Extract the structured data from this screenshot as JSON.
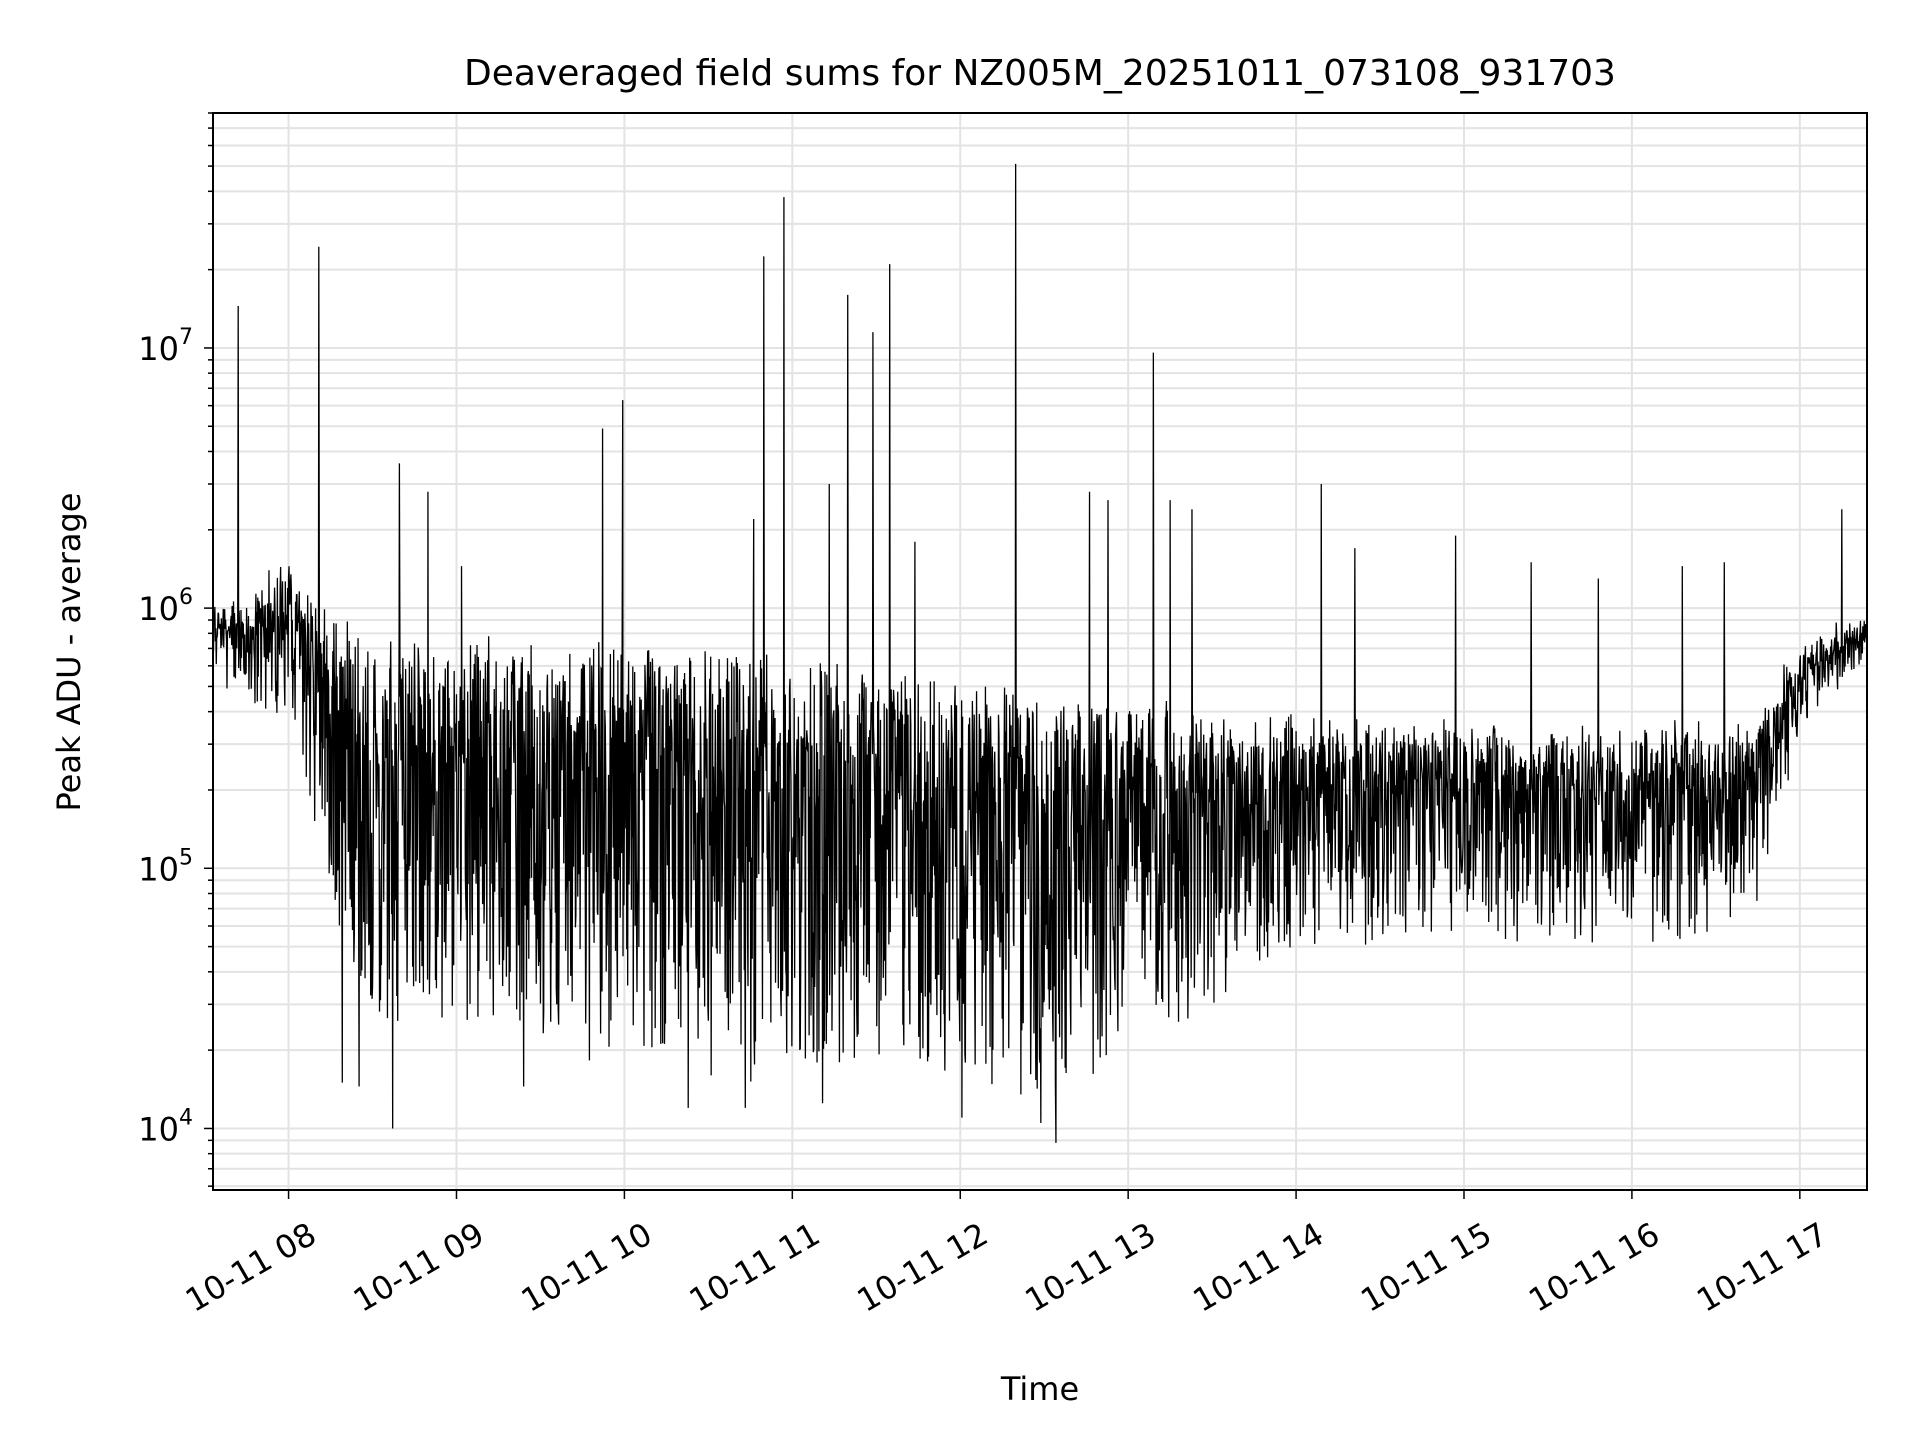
{
  "chart_data": {
    "type": "line",
    "title": "Deaveraged field sums for NZ005M_20251011_073108_931703",
    "xlabel": "Time",
    "ylabel": "Peak ADU - average",
    "yscale": "log",
    "ylim": [
      5800,
      80000000
    ],
    "xlim_hours": [
      7.55,
      17.4
    ],
    "grid": true,
    "line_color": "#000000",
    "x_ticks": [
      {
        "hour": 8,
        "label": "10-11 08"
      },
      {
        "hour": 9,
        "label": "10-11 09"
      },
      {
        "hour": 10,
        "label": "10-11 10"
      },
      {
        "hour": 11,
        "label": "10-11 11"
      },
      {
        "hour": 12,
        "label": "10-11 12"
      },
      {
        "hour": 13,
        "label": "10-11 13"
      },
      {
        "hour": 14,
        "label": "10-11 14"
      },
      {
        "hour": 15,
        "label": "10-11 15"
      },
      {
        "hour": 16,
        "label": "10-11 16"
      },
      {
        "hour": 17,
        "label": "10-11 17"
      }
    ],
    "y_ticks": [
      {
        "value": 10000,
        "base": "10",
        "exp": "4"
      },
      {
        "value": 100000,
        "base": "10",
        "exp": "5"
      },
      {
        "value": 1000000,
        "base": "10",
        "exp": "6"
      },
      {
        "value": 10000000,
        "base": "10",
        "exp": "7"
      }
    ],
    "baseline_upper": [
      {
        "hour": 7.55,
        "value": 1000000
      },
      {
        "hour": 7.7,
        "value": 950000
      },
      {
        "hour": 8.0,
        "value": 1500000
      },
      {
        "hour": 8.3,
        "value": 900000
      },
      {
        "hour": 8.8,
        "value": 750000
      },
      {
        "hour": 9.5,
        "value": 700000
      },
      {
        "hour": 10.5,
        "value": 650000
      },
      {
        "hour": 11.5,
        "value": 550000
      },
      {
        "hour": 12.0,
        "value": 500000
      },
      {
        "hour": 12.5,
        "value": 450000
      },
      {
        "hour": 13.0,
        "value": 400000
      },
      {
        "hour": 13.5,
        "value": 380000
      },
      {
        "hour": 14.0,
        "value": 350000
      },
      {
        "hour": 15.0,
        "value": 330000
      },
      {
        "hour": 16.0,
        "value": 320000
      },
      {
        "hour": 16.7,
        "value": 350000
      },
      {
        "hour": 17.0,
        "value": 650000
      },
      {
        "hour": 17.4,
        "value": 900000
      }
    ],
    "baseline_lower": [
      {
        "hour": 7.55,
        "value": 700000
      },
      {
        "hour": 7.7,
        "value": 450000
      },
      {
        "hour": 8.0,
        "value": 400000
      },
      {
        "hour": 8.15,
        "value": 150000
      },
      {
        "hour": 8.3,
        "value": 50000
      },
      {
        "hour": 8.6,
        "value": 20000
      },
      {
        "hour": 9.0,
        "value": 28000
      },
      {
        "hour": 9.5,
        "value": 22000
      },
      {
        "hour": 10.0,
        "value": 18000
      },
      {
        "hour": 10.5,
        "value": 17000
      },
      {
        "hour": 11.0,
        "value": 16000
      },
      {
        "hour": 11.5,
        "value": 17000
      },
      {
        "hour": 12.0,
        "value": 16000
      },
      {
        "hour": 12.5,
        "value": 13000
      },
      {
        "hour": 12.9,
        "value": 18000
      },
      {
        "hour": 13.0,
        "value": 30000
      },
      {
        "hour": 13.5,
        "value": 25000
      },
      {
        "hour": 13.8,
        "value": 45000
      },
      {
        "hour": 14.2,
        "value": 55000
      },
      {
        "hour": 15.0,
        "value": 60000
      },
      {
        "hour": 16.0,
        "value": 55000
      },
      {
        "hour": 16.7,
        "value": 60000
      },
      {
        "hour": 17.0,
        "value": 350000
      },
      {
        "hour": 17.4,
        "value": 700000
      }
    ],
    "spikes": [
      {
        "hour": 7.7,
        "value": 14500000
      },
      {
        "hour": 8.18,
        "value": 24500000
      },
      {
        "hour": 8.66,
        "value": 3600000
      },
      {
        "hour": 8.83,
        "value": 2800000
      },
      {
        "hour": 9.03,
        "value": 1450000
      },
      {
        "hour": 9.87,
        "value": 4900000
      },
      {
        "hour": 9.99,
        "value": 6300000
      },
      {
        "hour": 10.77,
        "value": 2200000
      },
      {
        "hour": 10.83,
        "value": 22500000
      },
      {
        "hour": 10.95,
        "value": 38000000
      },
      {
        "hour": 11.22,
        "value": 3000000
      },
      {
        "hour": 11.33,
        "value": 16000000
      },
      {
        "hour": 11.48,
        "value": 11500000
      },
      {
        "hour": 11.58,
        "value": 21000000
      },
      {
        "hour": 11.73,
        "value": 1800000
      },
      {
        "hour": 12.33,
        "value": 51000000
      },
      {
        "hour": 12.77,
        "value": 2800000
      },
      {
        "hour": 12.88,
        "value": 2600000
      },
      {
        "hour": 13.15,
        "value": 9600000
      },
      {
        "hour": 13.25,
        "value": 2600000
      },
      {
        "hour": 13.38,
        "value": 2400000
      },
      {
        "hour": 14.15,
        "value": 3000000
      },
      {
        "hour": 14.35,
        "value": 1700000
      },
      {
        "hour": 14.95,
        "value": 1900000
      },
      {
        "hour": 15.4,
        "value": 1500000
      },
      {
        "hour": 15.8,
        "value": 1300000
      },
      {
        "hour": 16.3,
        "value": 1450000
      },
      {
        "hour": 16.55,
        "value": 1500000
      },
      {
        "hour": 17.25,
        "value": 2400000
      }
    ],
    "dips": [
      {
        "hour": 8.32,
        "value": 15000
      },
      {
        "hour": 8.42,
        "value": 14500
      },
      {
        "hour": 8.62,
        "value": 10000
      },
      {
        "hour": 9.4,
        "value": 14500
      },
      {
        "hour": 10.38,
        "value": 12000
      },
      {
        "hour": 10.72,
        "value": 12000
      },
      {
        "hour": 11.18,
        "value": 12500
      },
      {
        "hour": 12.01,
        "value": 11000
      },
      {
        "hour": 12.48,
        "value": 10500
      },
      {
        "hour": 12.57,
        "value": 8800
      }
    ],
    "random_seed": 931703,
    "samples_per_hour": 360
  }
}
